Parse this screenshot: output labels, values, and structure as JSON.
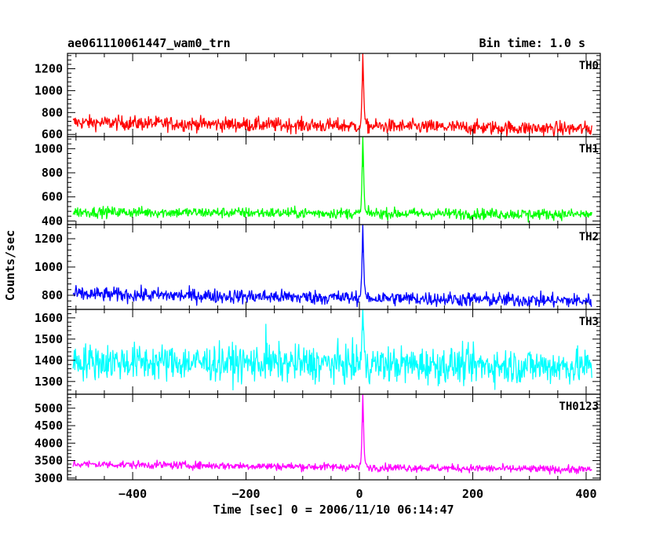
{
  "chart_data": {
    "type": "line",
    "title": "ae061110061447_wam0_trn",
    "bin_time": "Bin time: 1.0 s",
    "xlabel": "Time [sec] 0 = 2006/11/10 06:14:47",
    "ylabel": "Counts/sec",
    "xlim": [
      -515,
      425
    ],
    "x_ticks": [
      -400,
      -200,
      0,
      200,
      400
    ],
    "x_tick_labels": [
      "−400",
      "−200",
      "0",
      "200",
      "400"
    ],
    "x_range_data": [
      -505,
      410
    ],
    "panels": [
      {
        "name": "TH0",
        "color": "#ff0000",
        "ylim": [
          580,
          1340
        ],
        "yticks": [
          600,
          800,
          1000,
          1200
        ],
        "baseline_start": 710,
        "baseline_end": 650,
        "noise_sd": 32,
        "peak": {
          "x": 6,
          "value": 1340
        },
        "peak_profile": [
          [
            2,
            700
          ],
          [
            3,
            760
          ],
          [
            4,
            880
          ],
          [
            5,
            1050
          ],
          [
            6,
            1340
          ],
          [
            7,
            1150
          ],
          [
            8,
            960
          ],
          [
            9,
            820
          ],
          [
            10,
            740
          ],
          [
            12,
            700
          ]
        ],
        "spikes": []
      },
      {
        "name": "TH1",
        "color": "#00ff00",
        "ylim": [
          370,
          1100
        ],
        "yticks": [
          400,
          600,
          800,
          1000
        ],
        "baseline_start": 475,
        "baseline_end": 455,
        "noise_sd": 22,
        "peak": {
          "x": 6,
          "value": 1100
        },
        "peak_profile": [
          [
            2,
            470
          ],
          [
            3,
            540
          ],
          [
            4,
            680
          ],
          [
            5,
            860
          ],
          [
            6,
            1100
          ],
          [
            7,
            930
          ],
          [
            8,
            720
          ],
          [
            9,
            580
          ],
          [
            10,
            500
          ],
          [
            12,
            470
          ]
        ],
        "spikes": [
          [
            298,
            390
          ]
        ]
      },
      {
        "name": "TH2",
        "color": "#0000ff",
        "ylim": [
          700,
          1300
        ],
        "yticks": [
          800,
          1000,
          1200
        ],
        "baseline_start": 808,
        "baseline_end": 760,
        "noise_sd": 25,
        "peak": {
          "x": 6,
          "value": 1300
        },
        "peak_profile": [
          [
            2,
            820
          ],
          [
            3,
            870
          ],
          [
            4,
            960
          ],
          [
            5,
            1110
          ],
          [
            6,
            1300
          ],
          [
            7,
            1140
          ],
          [
            8,
            980
          ],
          [
            9,
            880
          ],
          [
            10,
            830
          ],
          [
            12,
            810
          ]
        ],
        "spikes": []
      },
      {
        "name": "TH3",
        "color": "#00ffff",
        "ylim": [
          1240,
          1640
        ],
        "yticks": [
          1300,
          1400,
          1500,
          1600
        ],
        "baseline_start": 1395,
        "baseline_end": 1370,
        "noise_sd": 42,
        "peak": {
          "x": 6,
          "value": 1640
        },
        "peak_profile": [
          [
            3,
            1420
          ],
          [
            4,
            1480
          ],
          [
            5,
            1560
          ],
          [
            6,
            1640
          ],
          [
            7,
            1570
          ],
          [
            8,
            1500
          ],
          [
            9,
            1440
          ],
          [
            11,
            1400
          ]
        ],
        "spikes": [
          [
            -165,
            1570
          ]
        ]
      },
      {
        "name": "TH0123",
        "color": "#ff00ff",
        "ylim": [
          2950,
          5400
        ],
        "yticks": [
          3000,
          3500,
          4000,
          4500,
          5000
        ],
        "baseline_start": 3400,
        "baseline_end": 3240,
        "noise_sd": 55,
        "peak": {
          "x": 6,
          "value": 5400
        },
        "peak_profile": [
          [
            2,
            3400
          ],
          [
            3,
            3600
          ],
          [
            4,
            4000
          ],
          [
            5,
            4700
          ],
          [
            6,
            5400
          ],
          [
            7,
            4800
          ],
          [
            8,
            4100
          ],
          [
            9,
            3700
          ],
          [
            10,
            3500
          ],
          [
            12,
            3400
          ]
        ],
        "spikes": []
      }
    ]
  }
}
